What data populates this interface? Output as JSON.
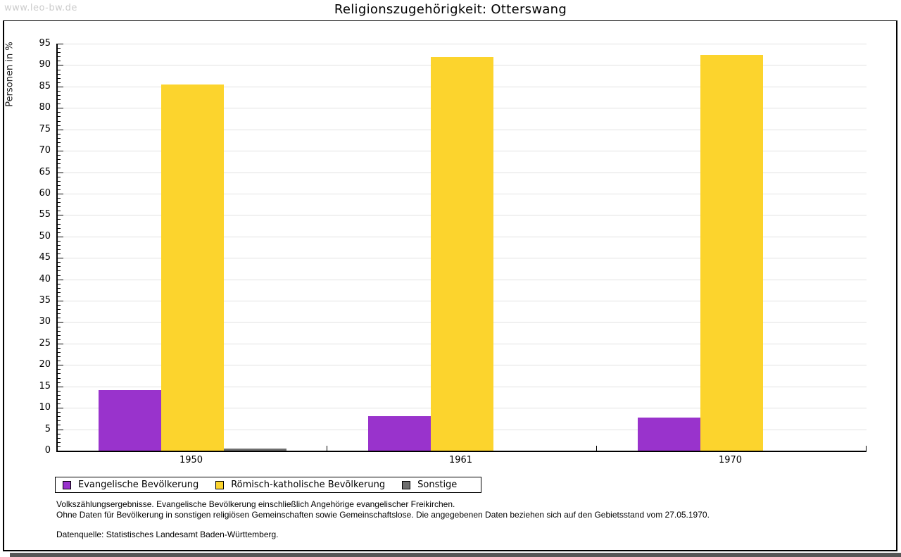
{
  "watermark": "www.leo-bw.de",
  "chart": {
    "title": "Religionszugehörigkeit: Otterswang",
    "ylabel": "Personen in %"
  },
  "chart_data": {
    "type": "bar",
    "title": "Religionszugehörigkeit: Otterswang",
    "xlabel": "",
    "ylabel": "Personen in %",
    "categories": [
      "1950",
      "1961",
      "1970"
    ],
    "series": [
      {
        "name": "Evangelische Bevölkerung",
        "color": "#9933CC",
        "values": [
          14.1,
          8.1,
          7.7
        ]
      },
      {
        "name": "Römisch-katholische Bevölkerung",
        "color": "#FCD42D",
        "values": [
          85.5,
          91.9,
          92.3
        ]
      },
      {
        "name": "Sonstige",
        "color": "#6E6E6E",
        "values": [
          0.5,
          0.0,
          0.0
        ]
      }
    ],
    "ylim": [
      0,
      95
    ],
    "y_major_step": 5,
    "y_minor_step": 1,
    "grid": true,
    "legend_position": "bottom-left"
  },
  "footnotes": [
    "Volkszählungsergebnisse. Evangelische Bevölkerung einschließlich Angehörige evangelischer Freikirchen.",
    "Ohne Daten für Bevölkerung in sonstigen religiösen Gemeinschaften sowie Gemeinschaftslose. Die angegebenen Daten beziehen sich auf den Gebietsstand vom 27.05.1970.",
    "Datenquelle: Statistisches Landesamt Baden-Württemberg."
  ],
  "colors": {
    "evangelisch": "#9933CC",
    "katholisch": "#FCD42D",
    "sonstige": "#6E6E6E",
    "gridline": "#E2E2E2",
    "watermark": "#CCCCCC",
    "frame": "#000000"
  }
}
